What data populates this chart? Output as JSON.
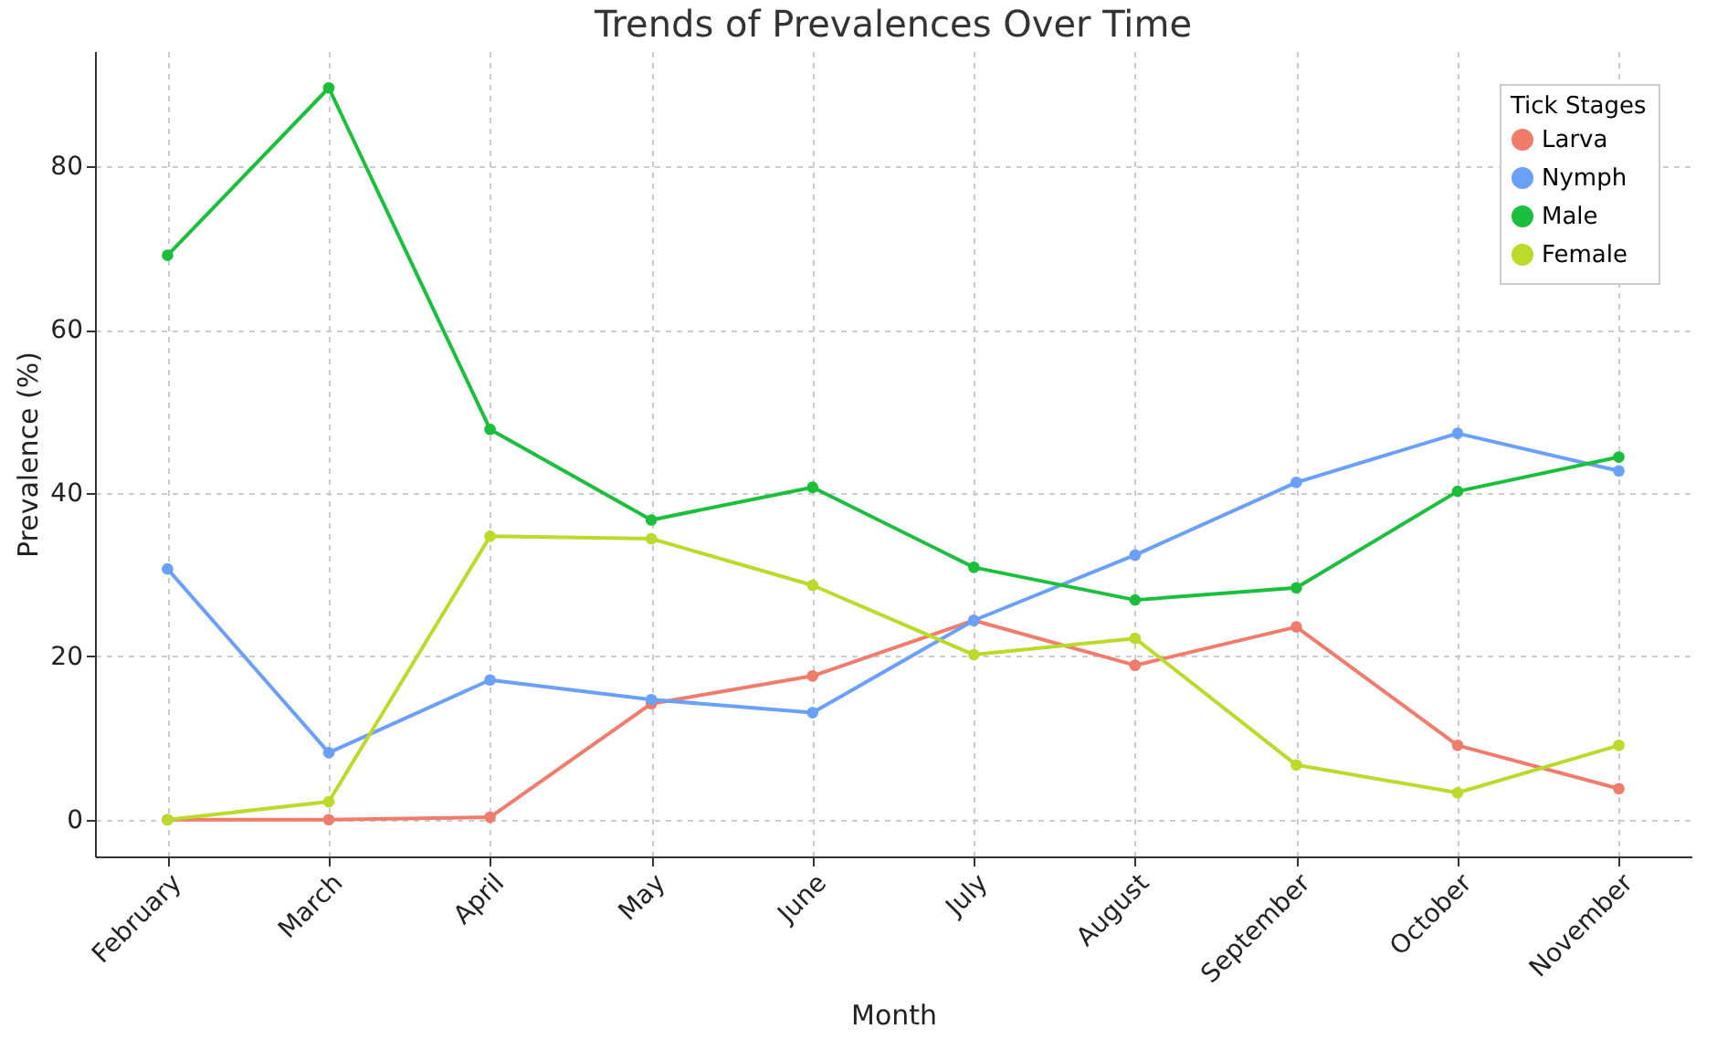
{
  "chart_data": {
    "type": "line",
    "title": "Trends of Prevalences Over Time",
    "xlabel": "Month",
    "ylabel": "Prevalence (%)",
    "legend_title": "Tick Stages",
    "categories": [
      "February",
      "March",
      "April",
      "May",
      "June",
      "July",
      "August",
      "September",
      "October",
      "November"
    ],
    "series": [
      {
        "name": "Larva",
        "color": "#f07c6c",
        "values": [
          0,
          0,
          0.3,
          14.2,
          17.6,
          24.4,
          18.9,
          23.6,
          9.1,
          3.8
        ]
      },
      {
        "name": "Nymph",
        "color": "#6aa0f8",
        "values": [
          30.7,
          8.2,
          17.1,
          14.7,
          13.1,
          24.4,
          32.4,
          41.3,
          47.3,
          42.7
        ]
      },
      {
        "name": "Male",
        "color": "#1cbf3c",
        "values": [
          69.1,
          89.6,
          47.8,
          36.7,
          40.7,
          30.9,
          26.9,
          28.4,
          40.2,
          44.4
        ]
      },
      {
        "name": "Female",
        "color": "#bada2c",
        "values": [
          0,
          2.2,
          34.7,
          34.4,
          28.7,
          20.2,
          22.2,
          6.7,
          3.3,
          9.1
        ]
      }
    ],
    "ylim": [
      -4.5,
      94.1
    ],
    "yticks": [
      0,
      20,
      40,
      60,
      80
    ],
    "grid": true,
    "legend": "top right",
    "marker": "circle",
    "line_style": "solid"
  }
}
